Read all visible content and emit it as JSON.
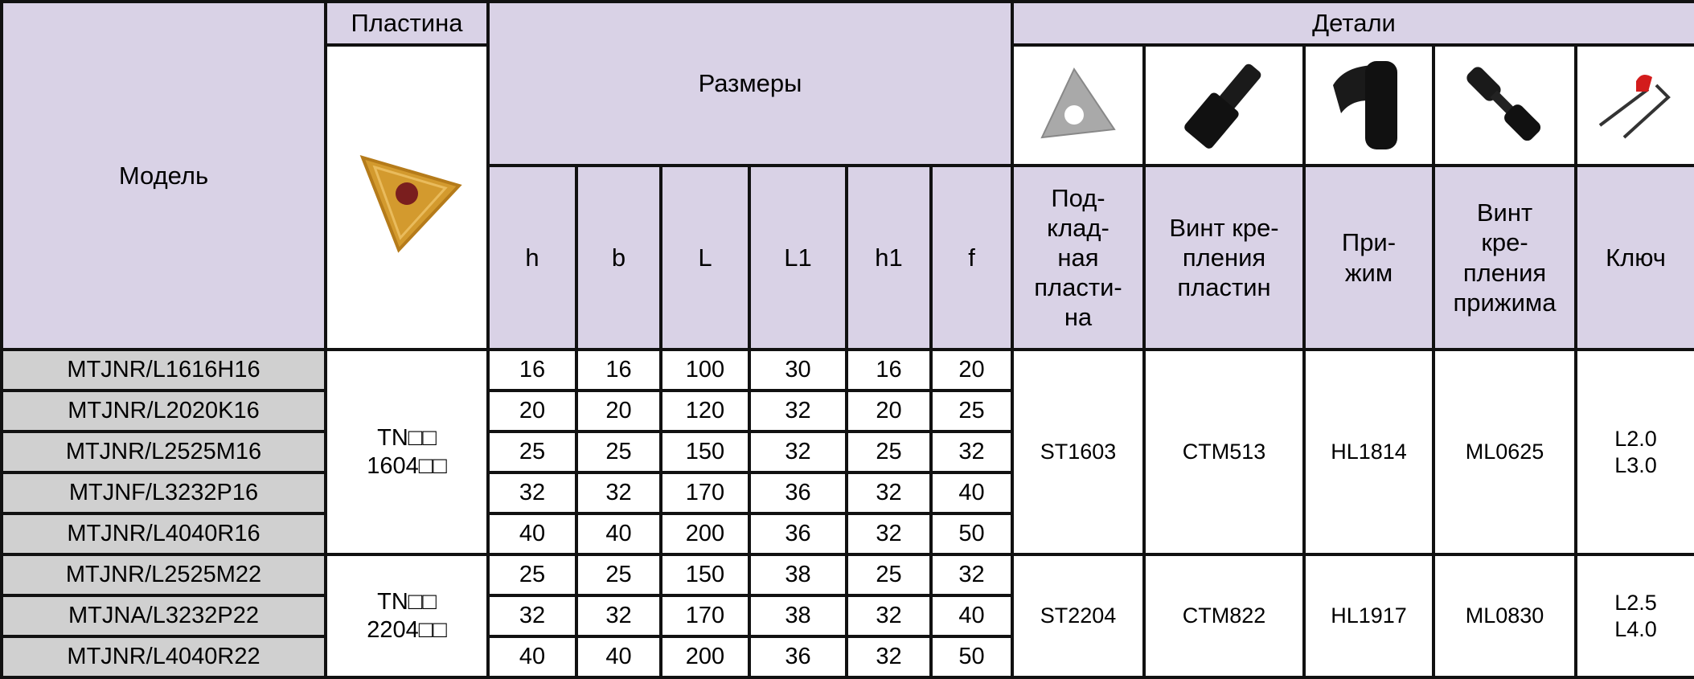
{
  "header": {
    "model": "Модель",
    "insert": "Пластина",
    "dimensions": "Размеры",
    "details": "Детали",
    "dim_columns": [
      "h",
      "b",
      "L",
      "L1",
      "h1",
      "f"
    ],
    "detail_columns": [
      "Под-\nклад-\nная\nпласти-\nна",
      "Винт кре-\nпления\nпластин",
      "При-\nжим",
      "Винт\nкре-\nпления\nприжима",
      "Ключ"
    ],
    "detail_icons": [
      "shim-icon",
      "insert-screw-icon",
      "clamp-icon",
      "clamp-screw-icon",
      "key-icon"
    ],
    "insert_icon": "triangular-insert-icon"
  },
  "colors": {
    "header_bg": "#d9d2e6",
    "model_bg": "#d0d0d0",
    "border": "#111111"
  },
  "groups": [
    {
      "insert": "TN□□\n1604□□",
      "shim": "ST1603",
      "insert_screw": "CTM513",
      "clamp": "HL1814",
      "clamp_screw": "ML0625",
      "key": "L2.0\nL3.0",
      "rows": [
        {
          "model": "MTJNR/L1616H16",
          "dims": [
            16,
            16,
            100,
            30,
            16,
            20
          ]
        },
        {
          "model": "MTJNR/L2020K16",
          "dims": [
            20,
            20,
            120,
            32,
            20,
            25
          ]
        },
        {
          "model": "MTJNR/L2525M16",
          "dims": [
            25,
            25,
            150,
            32,
            25,
            32
          ]
        },
        {
          "model": "MTJNF/L3232P16",
          "dims": [
            32,
            32,
            170,
            36,
            32,
            40
          ]
        },
        {
          "model": "MTJNR/L4040R16",
          "dims": [
            40,
            40,
            200,
            36,
            32,
            50
          ]
        }
      ]
    },
    {
      "insert": "TN□□\n2204□□",
      "shim": "ST2204",
      "insert_screw": "CTM822",
      "clamp": "HL1917",
      "clamp_screw": "ML0830",
      "key": "L2.5\nL4.0",
      "rows": [
        {
          "model": "MTJNR/L2525M22",
          "dims": [
            25,
            25,
            150,
            38,
            25,
            32
          ]
        },
        {
          "model": "MTJNA/L3232P22",
          "dims": [
            32,
            32,
            170,
            38,
            32,
            40
          ]
        },
        {
          "model": "MTJNR/L4040R22",
          "dims": [
            40,
            40,
            200,
            36,
            32,
            50
          ]
        }
      ]
    }
  ]
}
